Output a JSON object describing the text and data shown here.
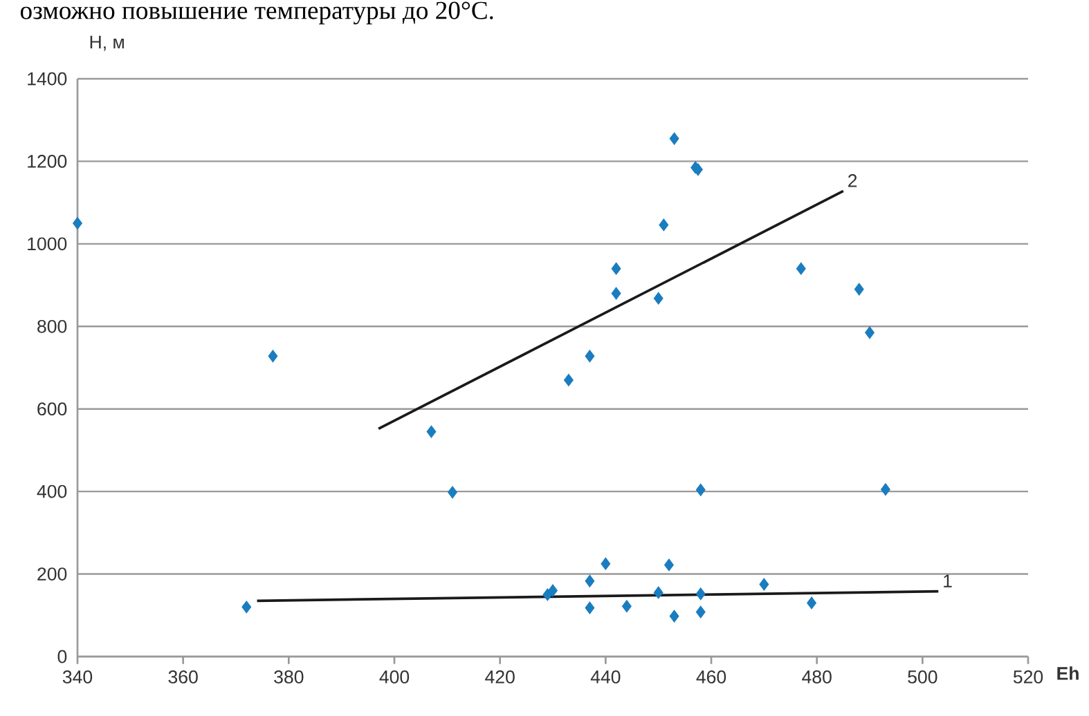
{
  "chart_data": {
    "type": "scatter",
    "xlabel": "Eh",
    "ylabel": "H, м",
    "annotations": [
      "озможно повышение температуры до 20°С."
    ],
    "xlim": [
      340,
      520
    ],
    "xticks": [
      340,
      360,
      380,
      400,
      420,
      440,
      460,
      480,
      500,
      520
    ],
    "ylim": [
      0,
      1400
    ],
    "yticks": [
      0,
      200,
      400,
      600,
      800,
      1000,
      1200,
      1400
    ],
    "grid": "y",
    "series": [
      {
        "marker": "diamond",
        "color": "#1a7dbf",
        "x": [
          340,
          377,
          372,
          407,
          411,
          429,
          430,
          433,
          437,
          437,
          437,
          440,
          442,
          442,
          444,
          450,
          450,
          451,
          452,
          453,
          453,
          457,
          457.5,
          458,
          458,
          458,
          470,
          477,
          479,
          488,
          490,
          493
        ],
        "values": [
          1050,
          728,
          120,
          545,
          398,
          150,
          160,
          670,
          728,
          183,
          118,
          225,
          940,
          880,
          122,
          868,
          155,
          1046,
          222,
          1255,
          98,
          1185,
          1180,
          404,
          152,
          108,
          175,
          940,
          130,
          890,
          785,
          405
        ]
      },
      {
        "type": "line",
        "name": "1",
        "color": "#1a1a1a",
        "x": [
          374,
          503
        ],
        "values": [
          135,
          158
        ]
      },
      {
        "type": "line",
        "name": "2",
        "color": "#1a1a1a",
        "x": [
          397,
          485
        ],
        "values": [
          552,
          1128
        ]
      }
    ]
  }
}
